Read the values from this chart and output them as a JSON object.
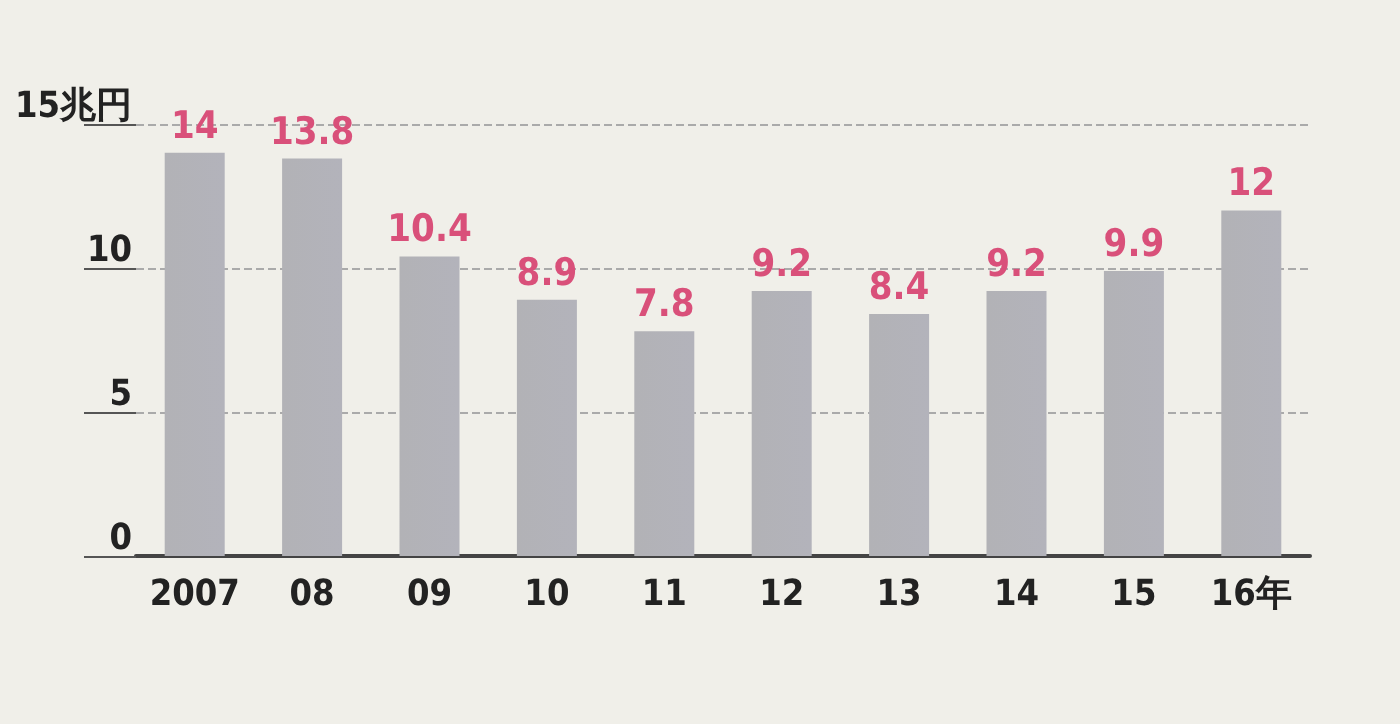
{
  "chart_data": {
    "type": "bar",
    "categories": [
      "2007",
      "08",
      "09",
      "10",
      "11",
      "12",
      "13",
      "14",
      "15",
      "16年"
    ],
    "values": [
      14,
      13.8,
      10.4,
      8.9,
      7.8,
      9.2,
      8.4,
      9.2,
      9.9,
      12
    ],
    "color": "#8a8a90",
    "ylim": [
      0,
      15
    ],
    "yticks": [
      0,
      5,
      10,
      {
        "value": 15,
        "label": "15兆円"
      }
    ],
    "grid": "y",
    "data_labels": true
  }
}
